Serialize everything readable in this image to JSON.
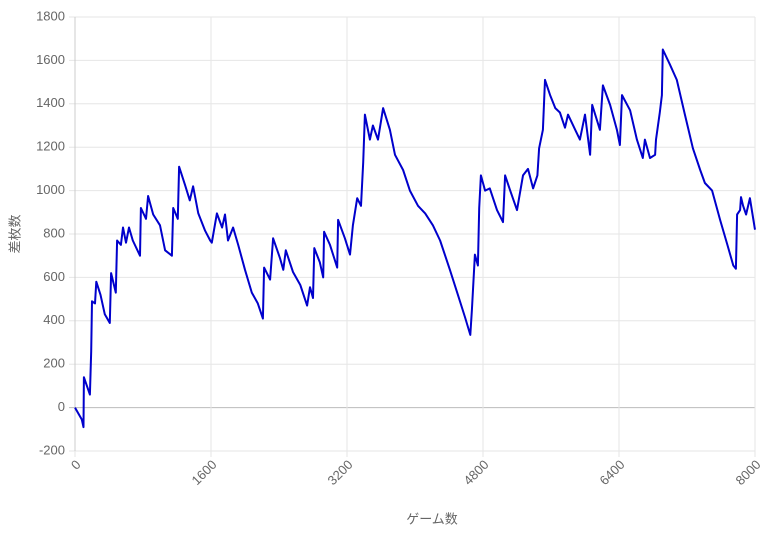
{
  "chart_data": {
    "type": "line",
    "x_label": "ゲーム数",
    "y_label": "差枚数",
    "xlim": [
      0,
      8000
    ],
    "xticks": [
      0,
      1600,
      3200,
      4800,
      6400,
      8000
    ],
    "ylim": [
      -200,
      1800
    ],
    "yticks": [
      -200,
      0,
      200,
      400,
      600,
      800,
      1000,
      1200,
      1400,
      1600,
      1800
    ],
    "grid": true,
    "series": [
      {
        "color": "#0000cc",
        "x": [
          0,
          80,
          100,
          105,
          175,
          190,
          200,
          235,
          250,
          300,
          350,
          410,
          425,
          480,
          495,
          540,
          565,
          600,
          635,
          680,
          765,
          775,
          835,
          860,
          920,
          1000,
          1060,
          1140,
          1155,
          1210,
          1225,
          1295,
          1350,
          1390,
          1450,
          1530,
          1590,
          1610,
          1670,
          1730,
          1765,
          1800,
          1860,
          1920,
          2000,
          2080,
          2150,
          2210,
          2225,
          2295,
          2330,
          2410,
          2450,
          2480,
          2565,
          2650,
          2730,
          2765,
          2800,
          2815,
          2880,
          2920,
          2930,
          3000,
          3085,
          3095,
          3175,
          3235,
          3270,
          3320,
          3365,
          3390,
          3410,
          3470,
          3505,
          3565,
          3625,
          3705,
          3765,
          3860,
          3940,
          4035,
          4120,
          4210,
          4295,
          4410,
          4505,
          4590,
          4650,
          4670,
          4705,
          4740,
          4755,
          4775,
          4825,
          4880,
          4965,
          5035,
          5060,
          5120,
          5200,
          5270,
          5330,
          5390,
          5440,
          5460,
          5505,
          5530,
          5590,
          5650,
          5705,
          5765,
          5800,
          5885,
          5940,
          6000,
          6060,
          6085,
          6140,
          6175,
          6210,
          6295,
          6375,
          6410,
          6435,
          6530,
          6610,
          6680,
          6705,
          6765,
          6825,
          6835,
          6880,
          6905,
          6915,
          7000,
          7080,
          7175,
          7270,
          7355,
          7410,
          7495,
          7590,
          7675,
          7745,
          7775,
          7790,
          7825,
          7835,
          7860,
          7895,
          7940,
          8000
        ],
        "values": [
          0,
          -55,
          -90,
          140,
          60,
          260,
          490,
          480,
          580,
          520,
          430,
          390,
          620,
          530,
          770,
          750,
          830,
          760,
          830,
          770,
          700,
          920,
          870,
          975,
          890,
          840,
          725,
          700,
          920,
          870,
          1110,
          1025,
          955,
          1020,
          895,
          815,
          770,
          760,
          895,
          830,
          890,
          770,
          830,
          750,
          635,
          530,
          480,
          410,
          645,
          590,
          780,
          690,
          635,
          725,
          625,
          565,
          470,
          555,
          505,
          735,
          670,
          600,
          810,
          750,
          645,
          865,
          780,
          705,
          840,
          965,
          930,
          1130,
          1350,
          1235,
          1300,
          1235,
          1380,
          1280,
          1165,
          1095,
          1000,
          930,
          895,
          840,
          770,
          635,
          520,
          415,
          335,
          450,
          705,
          655,
          920,
          1070,
          1000,
          1010,
          910,
          855,
          1070,
          1000,
          910,
          1070,
          1100,
          1010,
          1070,
          1195,
          1280,
          1510,
          1440,
          1380,
          1360,
          1290,
          1350,
          1280,
          1235,
          1350,
          1165,
          1395,
          1325,
          1280,
          1485,
          1395,
          1280,
          1210,
          1440,
          1370,
          1235,
          1150,
          1235,
          1150,
          1165,
          1235,
          1360,
          1440,
          1650,
          1580,
          1510,
          1350,
          1195,
          1095,
          1035,
          1000,
          865,
          750,
          655,
          640,
          890,
          910,
          970,
          930,
          890,
          965,
          820
        ]
      }
    ]
  }
}
